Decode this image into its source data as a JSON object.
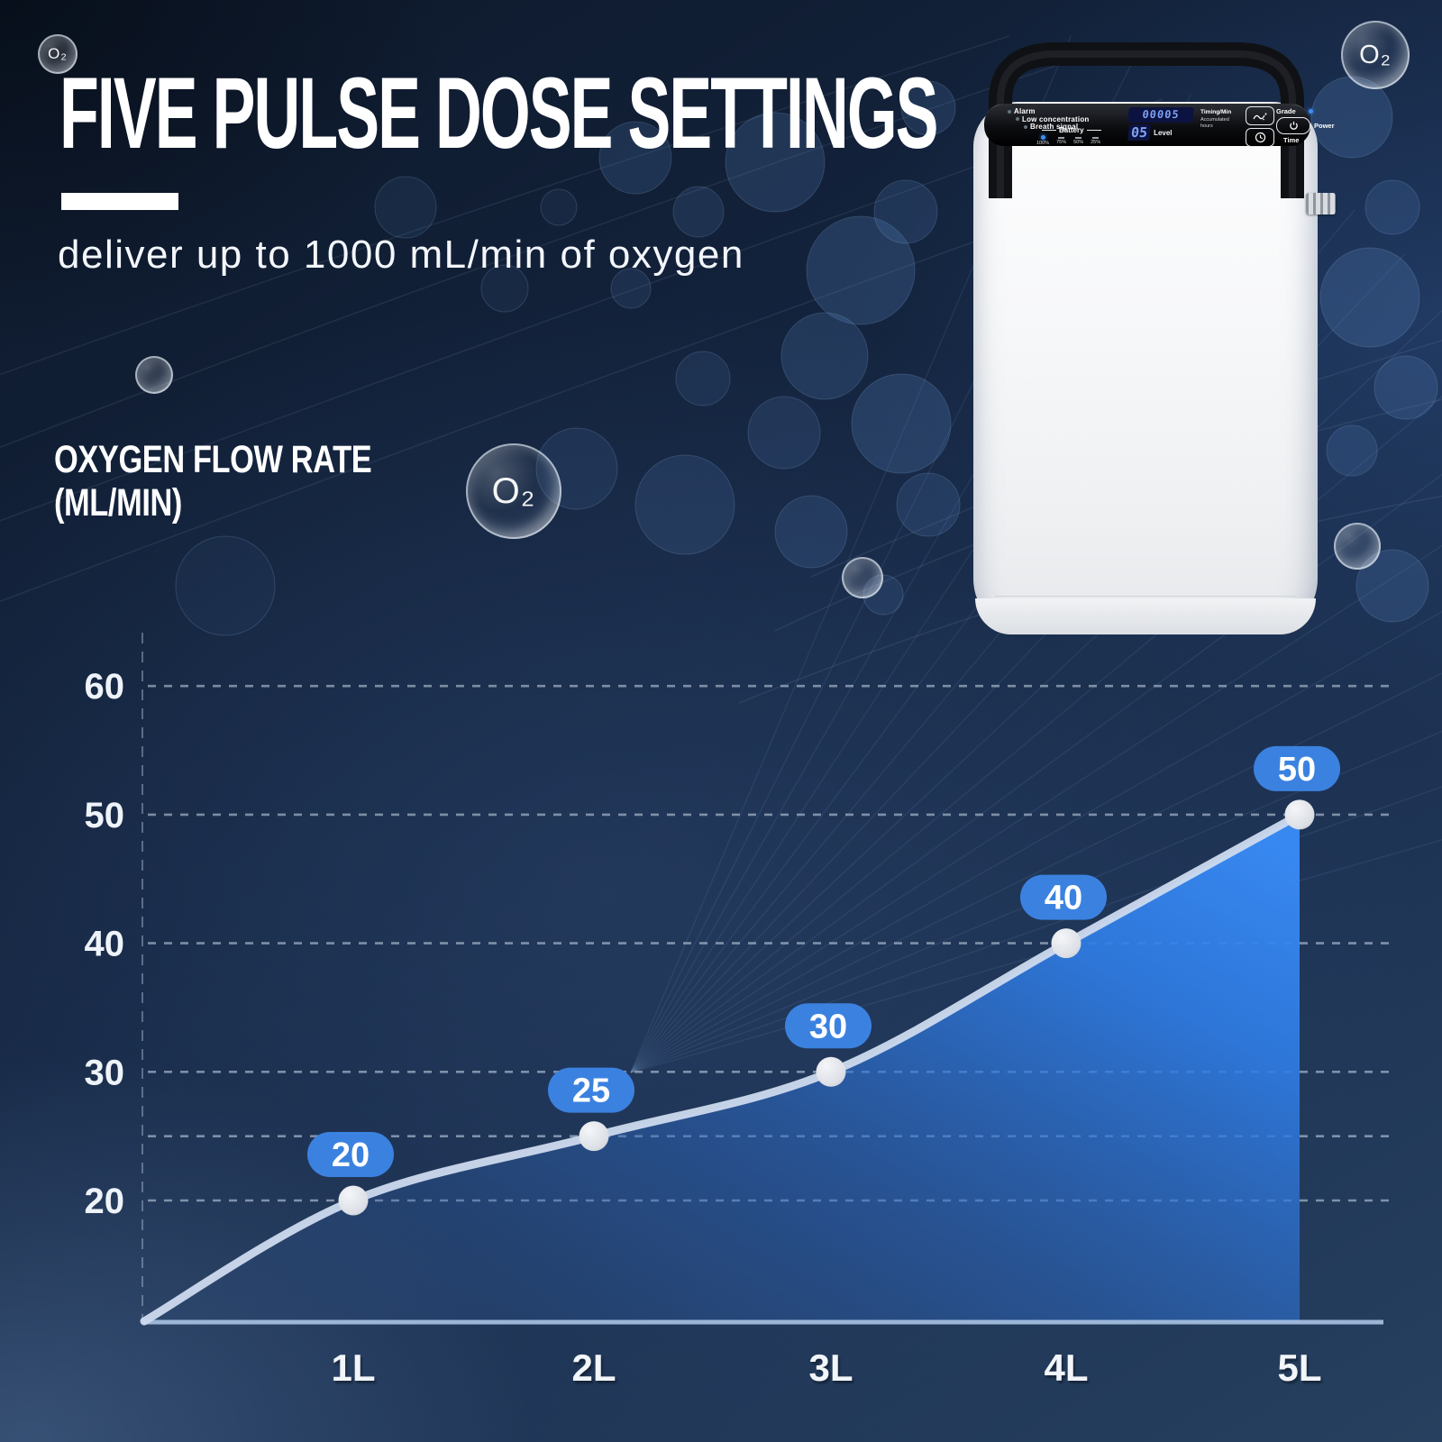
{
  "header": {
    "title": "FIVE PULSE DOSE SETTINGS",
    "subtitle": "deliver up to 1000 mL/min of oxygen"
  },
  "decor": {
    "o2_label": "O₂"
  },
  "chart": {
    "ylabel_line1": "OXYGEN FLOW RATE",
    "ylabel_line2": "(ML/MIN)"
  },
  "chart_data": {
    "type": "area",
    "title": "FIVE PULSE DOSE SETTINGS",
    "ylabel": "OXYGEN FLOW RATE (ML/MIN)",
    "categories": [
      "1L",
      "2L",
      "3L",
      "4L",
      "5L"
    ],
    "values": [
      20,
      25,
      30,
      40,
      50
    ],
    "point_labels": [
      "20",
      "25",
      "30",
      "40",
      "50"
    ],
    "yticks": [
      60,
      50,
      40,
      30,
      20
    ],
    "gridline_values": [
      60,
      50,
      40,
      30,
      25,
      20
    ],
    "ylim": [
      10,
      65
    ],
    "grid": true,
    "legend": false,
    "line_color": "#cddaee",
    "area_color": "#2f80e8",
    "badge_color": "#3b82e0",
    "point_color": "#dfe3e9"
  },
  "device": {
    "panel": {
      "indicators": [
        "Alarm",
        "Low concentration",
        "Breath signal"
      ],
      "battery_label": "Battery",
      "battery_levels": [
        "100%",
        "75%",
        "50%",
        "25%"
      ],
      "display_value": "00005",
      "display_level": "05",
      "level_label": "Level",
      "timing_label": "Timing/Min",
      "hours_label": "Accumulated hours",
      "grade_label": "Grade",
      "power_label": "Power",
      "time_label": "Time"
    }
  }
}
